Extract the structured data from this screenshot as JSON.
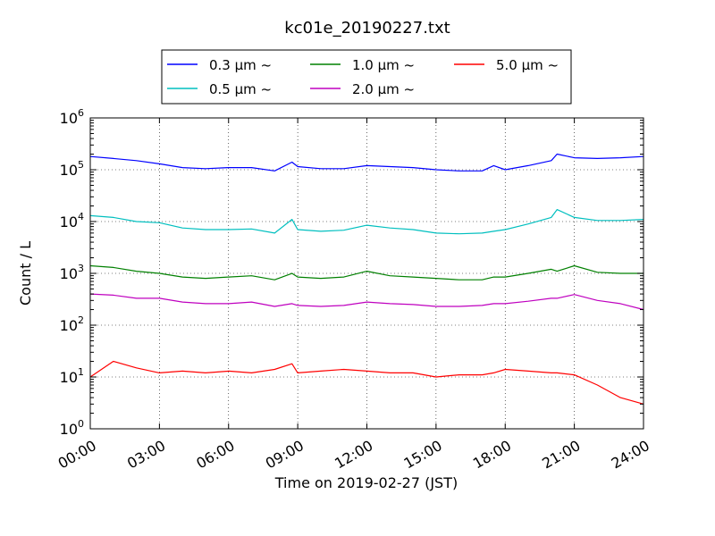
{
  "chart_data": {
    "type": "line",
    "title": "kc01e_20190227.txt",
    "xlabel": "Time on 2019-02-27 (JST)",
    "ylabel": "Count / L",
    "yscale": "log",
    "ylim": [
      1,
      1000000
    ],
    "xlim": [
      "2019-02-27 00:00",
      "2019-02-28 00:00"
    ],
    "x_tick_labels": [
      "00:00",
      "03:00",
      "06:00",
      "09:00",
      "12:00",
      "15:00",
      "18:00",
      "21:00",
      "24:00"
    ],
    "y_tick_labels": [
      {
        "base": "10",
        "exp": "0"
      },
      {
        "base": "10",
        "exp": "1"
      },
      {
        "base": "10",
        "exp": "2"
      },
      {
        "base": "10",
        "exp": "3"
      },
      {
        "base": "10",
        "exp": "4"
      },
      {
        "base": "10",
        "exp": "5"
      },
      {
        "base": "10",
        "exp": "6"
      }
    ],
    "grid": true,
    "legend_position": "top-center",
    "x": [
      "00:00",
      "01:00",
      "02:00",
      "03:00",
      "04:00",
      "05:00",
      "06:00",
      "07:00",
      "08:00",
      "08:45",
      "09:00",
      "10:00",
      "11:00",
      "12:00",
      "13:00",
      "14:00",
      "15:00",
      "16:00",
      "17:00",
      "17:30",
      "18:00",
      "19:00",
      "20:00",
      "20:15",
      "21:00",
      "22:00",
      "23:00",
      "24:00"
    ],
    "series": [
      {
        "name": "0.3 μm ~",
        "color": "#0000ff",
        "values": [
          180000,
          165000,
          150000,
          130000,
          110000,
          105000,
          110000,
          110000,
          95000,
          140000,
          115000,
          105000,
          105000,
          120000,
          115000,
          110000,
          100000,
          95000,
          95000,
          120000,
          100000,
          120000,
          150000,
          200000,
          170000,
          165000,
          170000,
          180000
        ]
      },
      {
        "name": "0.5 μm ~",
        "color": "#00bfbf",
        "values": [
          13000,
          12000,
          10000,
          9500,
          7500,
          7000,
          7000,
          7200,
          6000,
          11000,
          7000,
          6500,
          6800,
          8500,
          7500,
          7000,
          6000,
          5800,
          6000,
          6500,
          7000,
          9000,
          12000,
          17000,
          12000,
          10500,
          10500,
          11000
        ]
      },
      {
        "name": "1.0 μm ~",
        "color": "#008000",
        "values": [
          1400,
          1300,
          1100,
          1000,
          850,
          800,
          850,
          900,
          750,
          1000,
          850,
          800,
          850,
          1100,
          900,
          850,
          800,
          750,
          750,
          850,
          850,
          1000,
          1200,
          1100,
          1400,
          1050,
          1000,
          1000
        ]
      },
      {
        "name": "2.0 μm ~",
        "color": "#bf00bf",
        "values": [
          400,
          380,
          330,
          330,
          280,
          260,
          260,
          280,
          230,
          260,
          240,
          230,
          240,
          280,
          260,
          250,
          230,
          230,
          240,
          260,
          260,
          290,
          330,
          330,
          390,
          300,
          260,
          200
        ]
      },
      {
        "name": "5.0 μm ~",
        "color": "#ff0000",
        "values": [
          10,
          20,
          15,
          12,
          13,
          12,
          13,
          12,
          14,
          18,
          12,
          13,
          14,
          13,
          12,
          12,
          10,
          11,
          11,
          12,
          14,
          13,
          12,
          12,
          11,
          7,
          4,
          3
        ]
      }
    ]
  }
}
